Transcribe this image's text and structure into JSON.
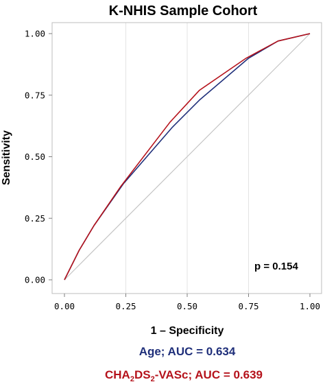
{
  "chart_data": {
    "type": "line",
    "title": "K-NHIS Sample Cohort",
    "xlabel": "1 – Specificity",
    "ylabel": "Sensitivity",
    "xlim": [
      0,
      1
    ],
    "ylim": [
      0,
      1
    ],
    "xticks": [
      "0.00",
      "0.25",
      "0.50",
      "0.75",
      "1.00"
    ],
    "yticks": [
      "0.00",
      "0.25",
      "0.50",
      "0.75",
      "1.00"
    ],
    "grid": "vertical",
    "annotation": "p = 0.154",
    "reference_line": {
      "x": [
        0,
        1
      ],
      "y": [
        0,
        1
      ],
      "color": "#c4c4c4"
    },
    "series": [
      {
        "legend_text": "Age; AUC = 0.634",
        "color": "#1f2f7a",
        "x": [
          0,
          0.06,
          0.12,
          0.24,
          0.44,
          0.55,
          0.75,
          0.87,
          1.0
        ],
        "y": [
          0,
          0.12,
          0.22,
          0.39,
          0.62,
          0.73,
          0.9,
          0.97,
          1.0
        ]
      },
      {
        "legend_parts": [
          "CHA",
          "2",
          "DS",
          "2",
          "-VASc; AUC = 0.639"
        ],
        "color": "#b5121b",
        "x": [
          0,
          0.06,
          0.12,
          0.23,
          0.43,
          0.55,
          0.74,
          0.87,
          1.0
        ],
        "y": [
          0,
          0.12,
          0.22,
          0.38,
          0.64,
          0.77,
          0.9,
          0.97,
          1.0
        ]
      }
    ]
  }
}
